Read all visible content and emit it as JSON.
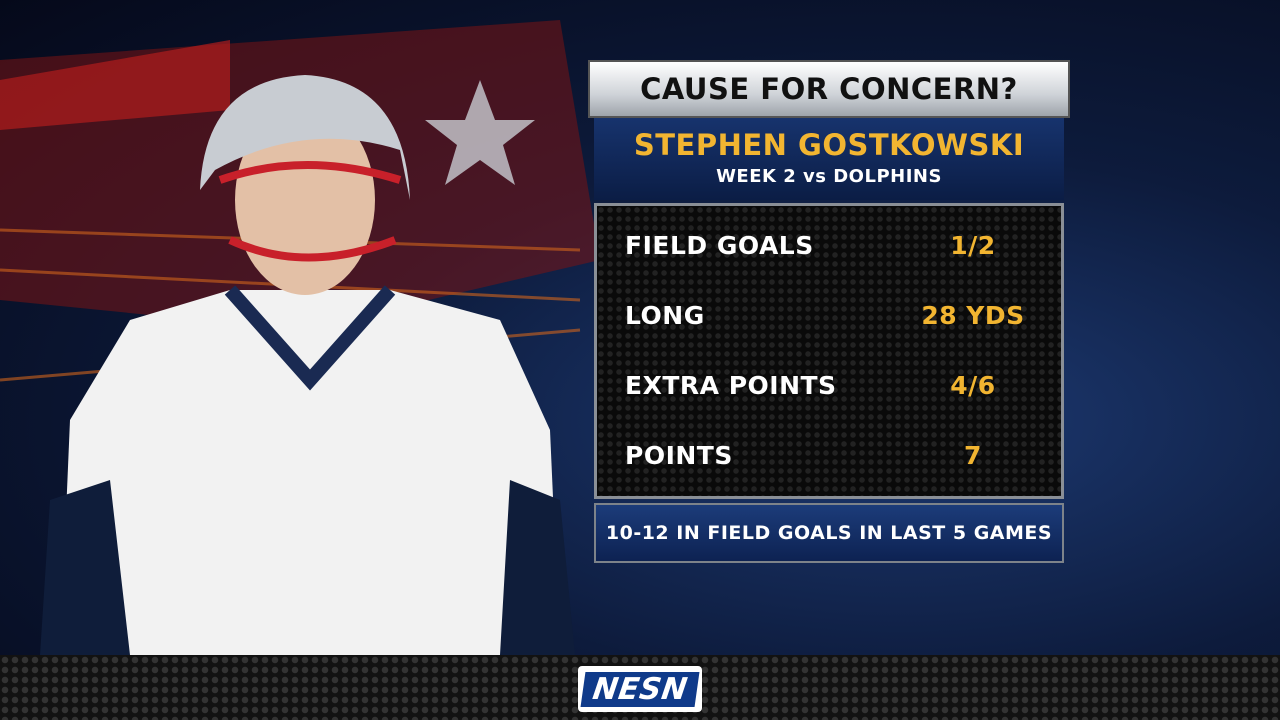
{
  "graphic": {
    "title": "CAUSE FOR CONCERN?",
    "player": "STEPHEN GOSTKOWSKI",
    "subtitle": "WEEK 2 vs DOLPHINS",
    "rows": [
      {
        "label": "FIELD GOALS",
        "value": "1/2"
      },
      {
        "label": "LONG",
        "value": "28 YDS"
      },
      {
        "label": "EXTRA POINTS",
        "value": "4/6"
      },
      {
        "label": "POINTS",
        "value": "7"
      }
    ],
    "footer": "10-12 IN FIELD GOALS IN LAST 5 GAMES"
  },
  "network": {
    "logo": "NESN"
  }
}
